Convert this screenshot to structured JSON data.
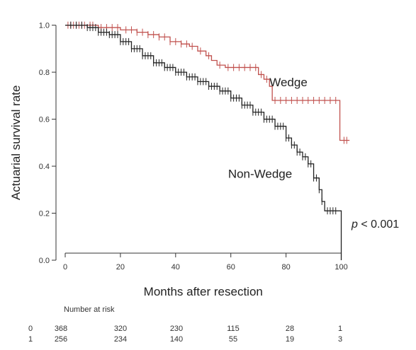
{
  "chart_data": {
    "type": "line",
    "xlabel": "Months after resection",
    "ylabel": "Actuarial survival rate",
    "xlim": [
      0,
      105
    ],
    "ylim": [
      0,
      1.05
    ],
    "x_ticks": [
      0,
      20,
      40,
      60,
      80,
      100
    ],
    "y_ticks": [
      "0.0",
      "0.2",
      "0.4",
      "0.6",
      "0.8",
      "1.0"
    ],
    "grid": false,
    "p_value_prefix": "p",
    "p_value_rest": " < 0.001",
    "series": [
      {
        "name": "Wedge",
        "color": "#c0504d",
        "label_at": [
          74,
          0.74
        ],
        "points": [
          [
            0,
            1.0
          ],
          [
            8,
            1.0
          ],
          [
            12,
            0.99
          ],
          [
            20,
            0.98
          ],
          [
            26,
            0.97
          ],
          [
            30,
            0.96
          ],
          [
            34,
            0.95
          ],
          [
            38,
            0.93
          ],
          [
            42,
            0.92
          ],
          [
            45,
            0.91
          ],
          [
            48,
            0.89
          ],
          [
            51,
            0.87
          ],
          [
            53,
            0.85
          ],
          [
            55,
            0.83
          ],
          [
            58,
            0.82
          ],
          [
            69,
            0.82
          ],
          [
            70,
            0.79
          ],
          [
            72,
            0.77
          ],
          [
            74,
            0.74
          ],
          [
            75,
            0.68
          ],
          [
            99,
            0.68
          ],
          [
            99.5,
            0.51
          ],
          [
            103,
            0.51
          ]
        ],
        "censored": [
          1,
          2,
          3,
          4,
          5,
          6,
          7,
          9,
          10,
          13,
          15,
          17,
          19,
          22,
          24,
          26,
          28,
          30,
          32,
          34,
          36,
          38,
          40,
          42,
          44,
          46,
          49,
          52,
          56,
          59,
          61,
          63,
          65,
          67,
          69,
          71,
          73,
          76,
          78,
          80,
          82,
          84,
          86,
          88,
          90,
          92,
          94,
          96,
          98,
          101,
          102
        ]
      },
      {
        "name": "Non-Wedge",
        "color": "#222222",
        "label_at": [
          59,
          0.35
        ],
        "points": [
          [
            0,
            1.0
          ],
          [
            6,
            1.0
          ],
          [
            8,
            0.99
          ],
          [
            12,
            0.97
          ],
          [
            16,
            0.96
          ],
          [
            20,
            0.93
          ],
          [
            24,
            0.9
          ],
          [
            28,
            0.87
          ],
          [
            32,
            0.84
          ],
          [
            36,
            0.82
          ],
          [
            40,
            0.8
          ],
          [
            44,
            0.78
          ],
          [
            48,
            0.76
          ],
          [
            52,
            0.74
          ],
          [
            56,
            0.72
          ],
          [
            60,
            0.69
          ],
          [
            64,
            0.66
          ],
          [
            68,
            0.63
          ],
          [
            72,
            0.6
          ],
          [
            76,
            0.57
          ],
          [
            80,
            0.52
          ],
          [
            82,
            0.49
          ],
          [
            84,
            0.46
          ],
          [
            86,
            0.44
          ],
          [
            88,
            0.41
          ],
          [
            90,
            0.35
          ],
          [
            92,
            0.3
          ],
          [
            93,
            0.25
          ],
          [
            94,
            0.21
          ],
          [
            100,
            0.21
          ],
          [
            100,
            0.0
          ]
        ],
        "censored": [
          2,
          4,
          6,
          8,
          9,
          10,
          11,
          12,
          13,
          14,
          15,
          16,
          17,
          18,
          19,
          20,
          21,
          22,
          23,
          24,
          25,
          26,
          27,
          28,
          29,
          30,
          31,
          32,
          33,
          34,
          35,
          36,
          37,
          38,
          39,
          40,
          41,
          42,
          43,
          44,
          45,
          46,
          47,
          48,
          49,
          50,
          51,
          52,
          53,
          54,
          55,
          56,
          57,
          58,
          59,
          60,
          61,
          62,
          63,
          64,
          65,
          66,
          67,
          68,
          69,
          70,
          71,
          72,
          73,
          74,
          75,
          76,
          77,
          78,
          79,
          80,
          81,
          82,
          83,
          84,
          85,
          86,
          87,
          88,
          89,
          90,
          91,
          92,
          93,
          95,
          96,
          97,
          98
        ]
      }
    ],
    "number_at_risk": {
      "title": "Number at risk",
      "rows": [
        {
          "group": "0",
          "values": [
            "368",
            "320",
            "230",
            "115",
            "28",
            "1"
          ]
        },
        {
          "group": "1",
          "values": [
            "256",
            "234",
            "140",
            "55",
            "19",
            "3"
          ]
        }
      ]
    }
  }
}
